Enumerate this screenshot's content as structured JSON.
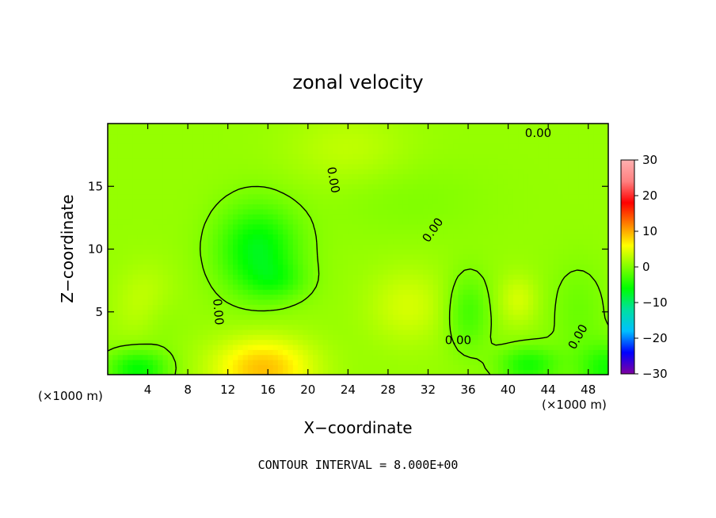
{
  "chart_data": {
    "type": "heatmap",
    "title": "zonal velocity",
    "xlabel": "X−coordinate",
    "ylabel": "Z−coordinate",
    "x_unit": "(×1000 m)",
    "z_unit": "(×1000 m)",
    "xlim": [
      0,
      50
    ],
    "ylim": [
      0,
      20
    ],
    "x_ticks": [
      4,
      8,
      12,
      16,
      20,
      24,
      28,
      32,
      36,
      40,
      44,
      48
    ],
    "y_ticks": [
      5,
      10,
      15
    ],
    "colorbar": {
      "range": [
        -30,
        30
      ],
      "ticks": [
        30,
        20,
        10,
        0,
        -10,
        -20,
        -30
      ],
      "tick_labels": [
        "30",
        "20",
        "10",
        "0",
        "−10",
        "−20",
        "−30"
      ],
      "colors": [
        "#8000a0",
        "#0000ff",
        "#00c0ff",
        "#00e0a0",
        "#00ff00",
        "#80ff00",
        "#ffff00",
        "#ff8000",
        "#ff0000",
        "#ff8080",
        "#ffb0b0"
      ]
    },
    "background_value": 1,
    "blobs": [
      {
        "x": 15,
        "z": 10,
        "rx": 4,
        "rz": 3.5,
        "v": -8
      },
      {
        "x": 17,
        "z": 7.5,
        "rx": 3,
        "rz": 1.5,
        "v": -3
      },
      {
        "x": 5,
        "z": 4.5,
        "rx": 2.5,
        "rz": 2.5,
        "v": -2
      },
      {
        "x": 3,
        "z": 0.5,
        "rx": 3,
        "rz": 1.5,
        "v": -7
      },
      {
        "x": 15.5,
        "z": 0.5,
        "rx": 5,
        "rz": 2.5,
        "v": 8
      },
      {
        "x": 4,
        "z": 5.5,
        "rx": 3,
        "rz": 3,
        "v": 3
      },
      {
        "x": 30,
        "z": 5.5,
        "rx": 4,
        "rz": 3,
        "v": 3
      },
      {
        "x": 36,
        "z": 5,
        "rx": 2.2,
        "rz": 3,
        "v": -4
      },
      {
        "x": 42,
        "z": 0.8,
        "rx": 3,
        "rz": 1.5,
        "v": -6
      },
      {
        "x": 50,
        "z": 0.5,
        "rx": 3,
        "rz": 2,
        "v": -6
      },
      {
        "x": 41,
        "z": 6,
        "rx": 2,
        "rz": 2,
        "v": 3
      },
      {
        "x": 47,
        "z": 5,
        "rx": 3,
        "rz": 4,
        "v": -2
      },
      {
        "x": 24,
        "z": 18,
        "rx": 6,
        "rz": 3,
        "v": 2
      },
      {
        "x": 30,
        "z": 14,
        "rx": 8,
        "rz": 3,
        "v": -1
      }
    ],
    "contour_interval_text": "CONTOUR INTERVAL = 8.000E+00",
    "contour_label": "0.00",
    "contour_label_positions": [
      {
        "x": 43,
        "z": 19.2,
        "angle": 0
      },
      {
        "x": 22.5,
        "z": 15.5,
        "angle": 80
      },
      {
        "x": 32.5,
        "z": 11.5,
        "angle": -55
      },
      {
        "x": 11,
        "z": 5,
        "angle": 85
      },
      {
        "x": 35,
        "z": 2.7,
        "angle": 0
      },
      {
        "x": 47,
        "z": 3,
        "angle": -60
      }
    ]
  }
}
